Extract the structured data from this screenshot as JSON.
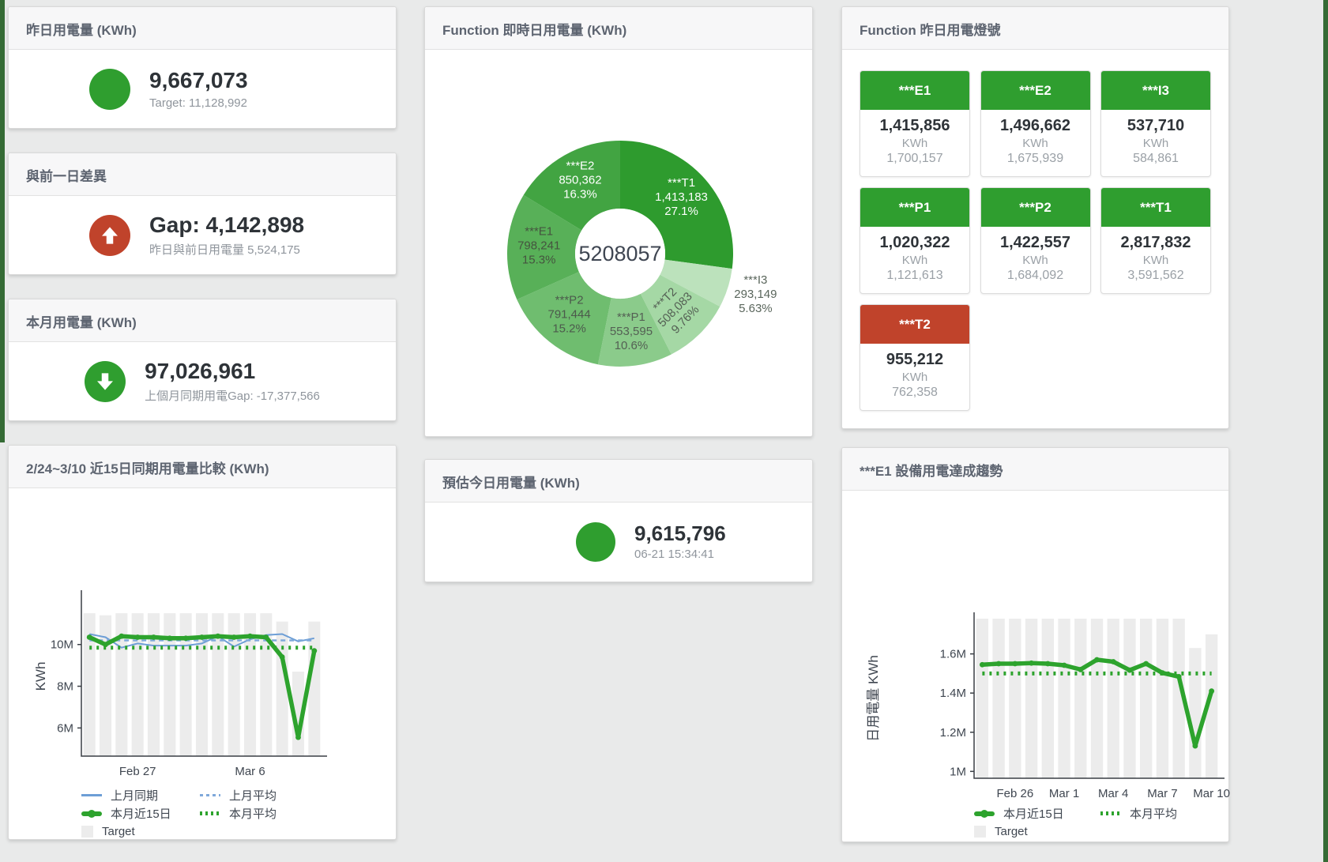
{
  "colors": {
    "green": "#2f9e2f",
    "red": "#c0432b",
    "chart_green": "#2da32d",
    "chart_blue": "#6d9ed6",
    "bar_gray": "#ececec"
  },
  "stat_cards": [
    {
      "title": "昨日用電量 (KWh)",
      "icon": "circle",
      "icon_color": "green",
      "value": "9,667,073",
      "subtitle": "Target: 11,128,992"
    },
    {
      "title": "與前一日差異",
      "icon": "arrow-up",
      "icon_color": "red",
      "value": "Gap: 4,142,898",
      "subtitle": "昨日與前日用電量 5,524,175"
    },
    {
      "title": "本月用電量 (KWh)",
      "icon": "arrow-down",
      "icon_color": "green",
      "value": "97,026,961",
      "subtitle": "上個月同期用電Gap: -17,377,566"
    },
    {
      "title": "預估今日用電量 (KWh)",
      "icon": "circle",
      "icon_color": "green",
      "value": "9,615,796",
      "subtitle": "06-21 15:34:41"
    }
  ],
  "lights": {
    "title": "Function 昨日用電燈號",
    "tiles": [
      {
        "label": "***E1",
        "value": "1,415,856",
        "unit": "KWh",
        "target": "1,700,157",
        "status": "green"
      },
      {
        "label": "***E2",
        "value": "1,496,662",
        "unit": "KWh",
        "target": "1,675,939",
        "status": "green"
      },
      {
        "label": "***I3",
        "value": "537,710",
        "unit": "KWh",
        "target": "584,861",
        "status": "green"
      },
      {
        "label": "***P1",
        "value": "1,020,322",
        "unit": "KWh",
        "target": "1,121,613",
        "status": "green"
      },
      {
        "label": "***P2",
        "value": "1,422,557",
        "unit": "KWh",
        "target": "1,684,092",
        "status": "green"
      },
      {
        "label": "***T1",
        "value": "2,817,832",
        "unit": "KWh",
        "target": "3,591,562",
        "status": "green"
      },
      {
        "label": "***T2",
        "value": "955,212",
        "unit": "KWh",
        "target": "762,358",
        "status": "red"
      }
    ]
  },
  "chart_data": [
    {
      "type": "pie",
      "title": "Function 即時日用電量 (KWh)",
      "center_total": "5208057",
      "legend_position": "none",
      "segments": [
        {
          "name": "***T1",
          "value": 1413183,
          "display": "1,413,183",
          "pct": "27.1%",
          "color": "#2e9b2e",
          "label_color": "#ffffff"
        },
        {
          "name": "***I3",
          "value": 293149,
          "display": "293,149",
          "pct": "5.63%",
          "color": "#bce2bc",
          "label_color": "#5a665c",
          "outside": true
        },
        {
          "name": "***T2",
          "value": 508083,
          "display": "508,083",
          "pct": "9.76%",
          "color": "#a5d8a5",
          "label_color": "#546054",
          "rotate": true
        },
        {
          "name": "***P1",
          "value": 553595,
          "display": "553,595",
          "pct": "10.6%",
          "color": "#8bcb8b",
          "label_color": "#546054"
        },
        {
          "name": "***P2",
          "value": 791444,
          "display": "791,444",
          "pct": "15.2%",
          "color": "#6fbd6f",
          "label_color": "#4c5a4c"
        },
        {
          "name": "***E1",
          "value": 798241,
          "display": "798,241",
          "pct": "15.3%",
          "color": "#58b058",
          "label_color": "#45543f"
        },
        {
          "name": "***E2",
          "value": 850362,
          "display": "850,362",
          "pct": "16.3%",
          "color": "#42a442",
          "label_color": "#ffffff"
        }
      ]
    },
    {
      "type": "line",
      "title": "2/24~3/10 近15日同期用電量比較 (KWh)",
      "xlabel": "",
      "ylabel": "KWh",
      "ylim": [
        4.65,
        12.3
      ],
      "grid": false,
      "yticks": [
        {
          "v": 6,
          "label": "6M"
        },
        {
          "v": 8,
          "label": "8M"
        },
        {
          "v": 10,
          "label": "10M"
        }
      ],
      "xticks": [
        {
          "i": 3,
          "label": "Feb 27"
        },
        {
          "i": 10,
          "label": "Mar 6"
        }
      ],
      "target_bars": {
        "name": "Target",
        "color": "#ececec",
        "values": [
          11.5,
          11.4,
          11.5,
          11.5,
          11.5,
          11.5,
          11.5,
          11.5,
          11.5,
          11.5,
          11.5,
          11.5,
          11.1,
          8.7,
          11.1
        ]
      },
      "series": [
        {
          "name": "上月同期",
          "style": "thin",
          "color": "#6d9ed6",
          "values": [
            10.5,
            10.35,
            9.85,
            10.05,
            9.95,
            9.95,
            9.95,
            10.05,
            10.4,
            9.9,
            10.25,
            10.45,
            10.5,
            10.15,
            10.3
          ]
        },
        {
          "name": "上月平均",
          "style": "dashed",
          "color": "#7fa9da",
          "const": 10.2
        },
        {
          "name": "本月平均",
          "style": "dotted",
          "color": "#2da32d",
          "const": 9.85
        },
        {
          "name": "本月近15日",
          "style": "thick",
          "color": "#2da32d",
          "values": [
            10.35,
            10.0,
            10.4,
            10.35,
            10.35,
            10.3,
            10.3,
            10.35,
            10.4,
            10.35,
            10.4,
            10.35,
            9.4,
            5.55,
            9.7
          ]
        }
      ],
      "legend": [
        {
          "label": "上月同期",
          "swatch": "thin-blue"
        },
        {
          "label": "上月平均",
          "swatch": "dash-blue"
        },
        {
          "label": "本月近15日",
          "swatch": "thick-green"
        },
        {
          "label": "本月平均",
          "swatch": "dot-green"
        },
        {
          "label": "Target",
          "swatch": "square-gray"
        }
      ]
    },
    {
      "type": "line",
      "title": "***E1 設備用電達成趨勢",
      "xlabel": "",
      "ylabel": "日用電量 KWh",
      "ylim": [
        0.965,
        1.78
      ],
      "grid": false,
      "yticks": [
        {
          "v": 1,
          "label": "1M"
        },
        {
          "v": 1.2,
          "label": "1.2M"
        },
        {
          "v": 1.4,
          "label": "1.4M"
        },
        {
          "v": 1.6,
          "label": "1.6M"
        }
      ],
      "xticks": [
        {
          "i": 2,
          "label": "Feb 26"
        },
        {
          "i": 5,
          "label": "Mar 1"
        },
        {
          "i": 8,
          "label": "Mar 4"
        },
        {
          "i": 11,
          "label": "Mar 7"
        },
        {
          "i": 14,
          "label": "Mar 10"
        }
      ],
      "target_bars": {
        "name": "Target",
        "color": "#ececec",
        "values": [
          1.78,
          1.78,
          1.78,
          1.78,
          1.78,
          1.78,
          1.78,
          1.78,
          1.78,
          1.78,
          1.78,
          1.78,
          1.78,
          1.63,
          1.7
        ]
      },
      "series": [
        {
          "name": "本月平均",
          "style": "dotted",
          "color": "#2da32d",
          "const": 1.5
        },
        {
          "name": "本月近15日",
          "style": "thick",
          "color": "#2da32d",
          "values": [
            1.545,
            1.55,
            1.55,
            1.553,
            1.55,
            1.542,
            1.52,
            1.57,
            1.56,
            1.517,
            1.55,
            1.503,
            1.484,
            1.13,
            1.41
          ]
        }
      ],
      "legend": [
        {
          "label": "本月近15日",
          "swatch": "thick-green"
        },
        {
          "label": "本月平均",
          "swatch": "dot-green"
        },
        {
          "label": "Target",
          "swatch": "square-gray"
        }
      ]
    }
  ]
}
